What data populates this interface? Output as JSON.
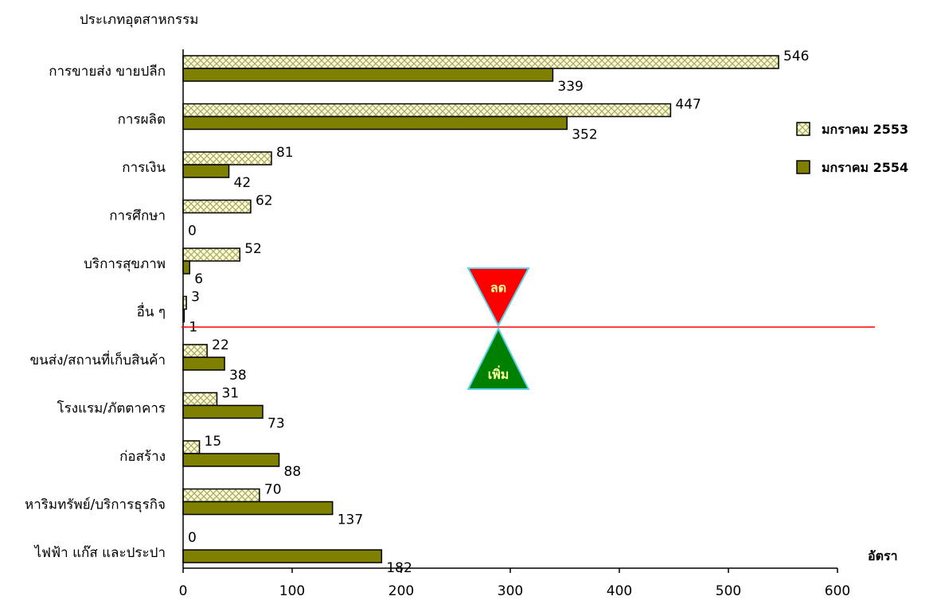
{
  "chart_data": {
    "type": "bar",
    "orientation": "horizontal",
    "title": "",
    "ylabel": "ประเภทอุตสาหกรรม",
    "xlabel": "อัตรา",
    "xlim": [
      0,
      600
    ],
    "xticks": [
      "0",
      "100",
      "200",
      "300",
      "400",
      "500",
      "600"
    ],
    "categories": [
      "การขายส่ง ขายปลีก",
      "การผลิต",
      "การเงิน",
      "การศึกษา",
      "บริการสุขภาพ",
      "อื่น ๆ",
      "ขนส่ง/สถานที่เก็บสินค้า",
      "โรงแรม/ภัตตาคาร",
      "ก่อสร้าง",
      "หาริมทรัพย์/บริการธุรกิจ",
      "ไฟฟ้า แก๊ส และประปา"
    ],
    "series": [
      {
        "name": "มกราคม 2553",
        "values": [
          546,
          447,
          81,
          62,
          52,
          3,
          22,
          31,
          15,
          70,
          0
        ],
        "color": "#ffffcc",
        "pattern": "crosshatch"
      },
      {
        "name": "มกราคม 2554",
        "values": [
          339,
          352,
          42,
          0,
          6,
          1,
          38,
          73,
          88,
          137,
          182
        ],
        "color": "#808000"
      }
    ],
    "legend_position": "top-right",
    "grid": false,
    "annotations": {
      "divider_color": "#ff0000",
      "decrease_label": "ลด",
      "decrease_color": "#ff0000",
      "increase_label": "เพิ่ม",
      "increase_color": "#008000"
    }
  }
}
